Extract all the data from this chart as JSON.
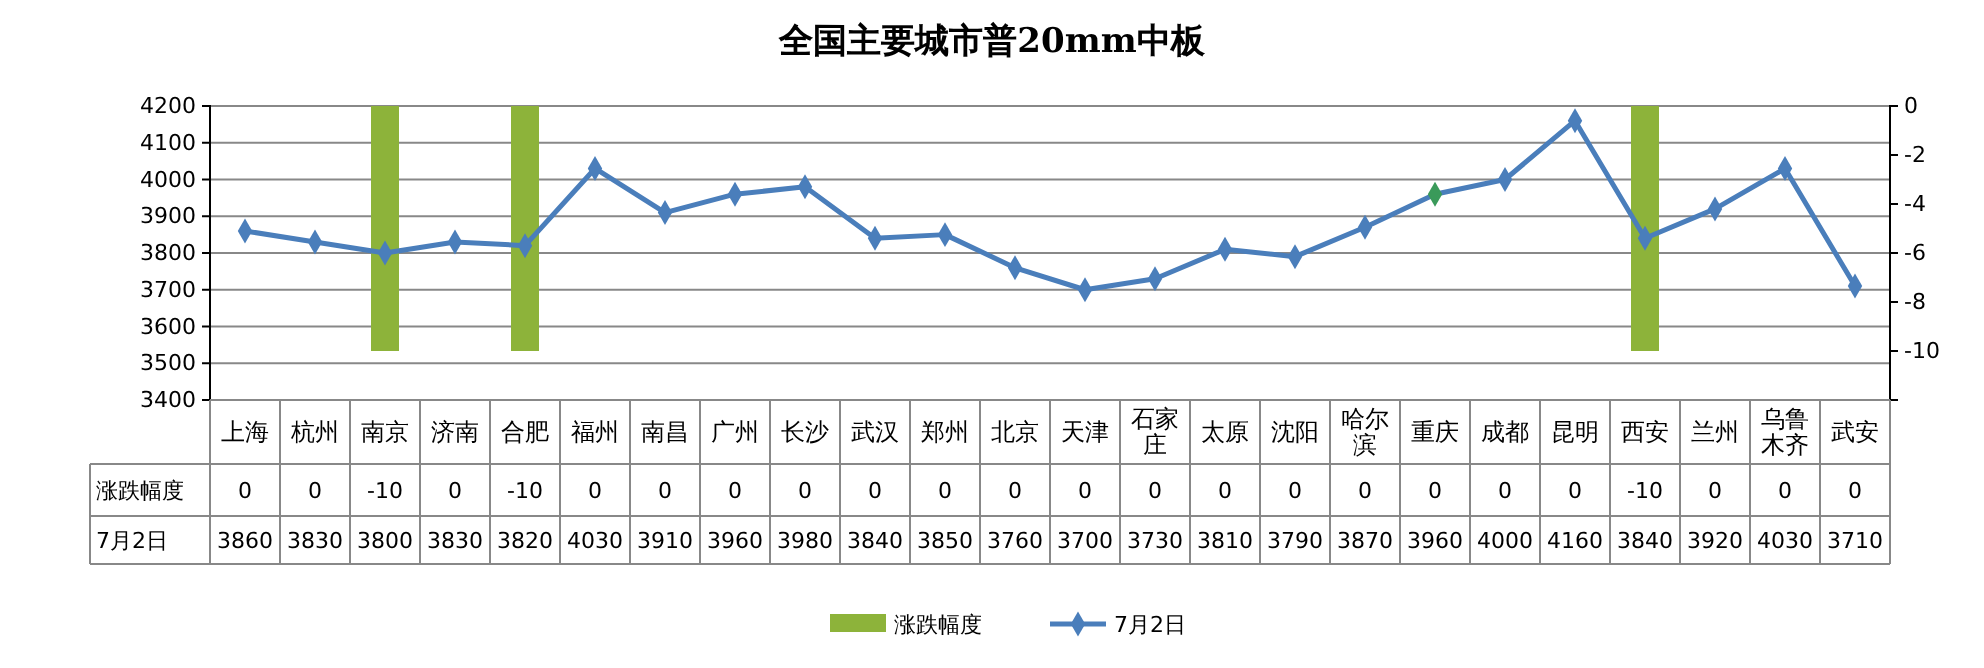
{
  "chart_data": {
    "type": "bar",
    "title": "全国主要城市普20mm中板",
    "categories": [
      "上海",
      "杭州",
      "南京",
      "济南",
      "合肥",
      "福州",
      "南昌",
      "广州",
      "长沙",
      "武汉",
      "郑州",
      "北京",
      "天津",
      "石家庄",
      "太原",
      "沈阳",
      "哈尔滨",
      "重庆",
      "成都",
      "昆明",
      "西安",
      "兰州",
      "乌鲁木齐",
      "武安"
    ],
    "series": [
      {
        "name": "涨跌幅度",
        "axis": "y2",
        "color": "#8db33a",
        "values": [
          0,
          0,
          -10,
          0,
          -10,
          0,
          0,
          0,
          0,
          0,
          0,
          0,
          0,
          0,
          0,
          0,
          0,
          0,
          0,
          0,
          -10,
          0,
          0,
          0
        ]
      },
      {
        "name": "7月2日",
        "type": "line",
        "color": "#4a7ebb",
        "marker": "diamond",
        "colors": [
          "#4a7ebb",
          "#4a7ebb",
          "#4a7ebb",
          "#4a7ebb",
          "#4a7ebb",
          "#4a7ebb",
          "#4a7ebb",
          "#4a7ebb",
          "#4a7ebb",
          "#4a7ebb",
          "#4a7ebb",
          "#4a7ebb",
          "#4a7ebb",
          "#4a7ebb",
          "#4a7ebb",
          "#4a7ebb",
          "#4a7ebb",
          "#3a9a5a",
          "#4a7ebb",
          "#4a7ebb",
          "#4a7ebb",
          "#4a7ebb",
          "#4a7ebb",
          "#4a7ebb"
        ],
        "values": [
          3860,
          3830,
          3800,
          3830,
          3820,
          4030,
          3910,
          3960,
          3980,
          3840,
          3850,
          3760,
          3700,
          3730,
          3810,
          3790,
          3870,
          3960,
          4000,
          4160,
          3840,
          3920,
          4030,
          3710
        ]
      }
    ],
    "ylim": [
      3400,
      4200
    ],
    "yticks": [
      3400,
      3500,
      3600,
      3700,
      3800,
      3900,
      4000,
      4100,
      4200
    ],
    "y2lim": [
      -12,
      0
    ],
    "y2ticks": [
      -10,
      -8,
      -6,
      -4,
      -2,
      0
    ],
    "grid": "y",
    "legend": "bottom",
    "data_labels": true
  }
}
